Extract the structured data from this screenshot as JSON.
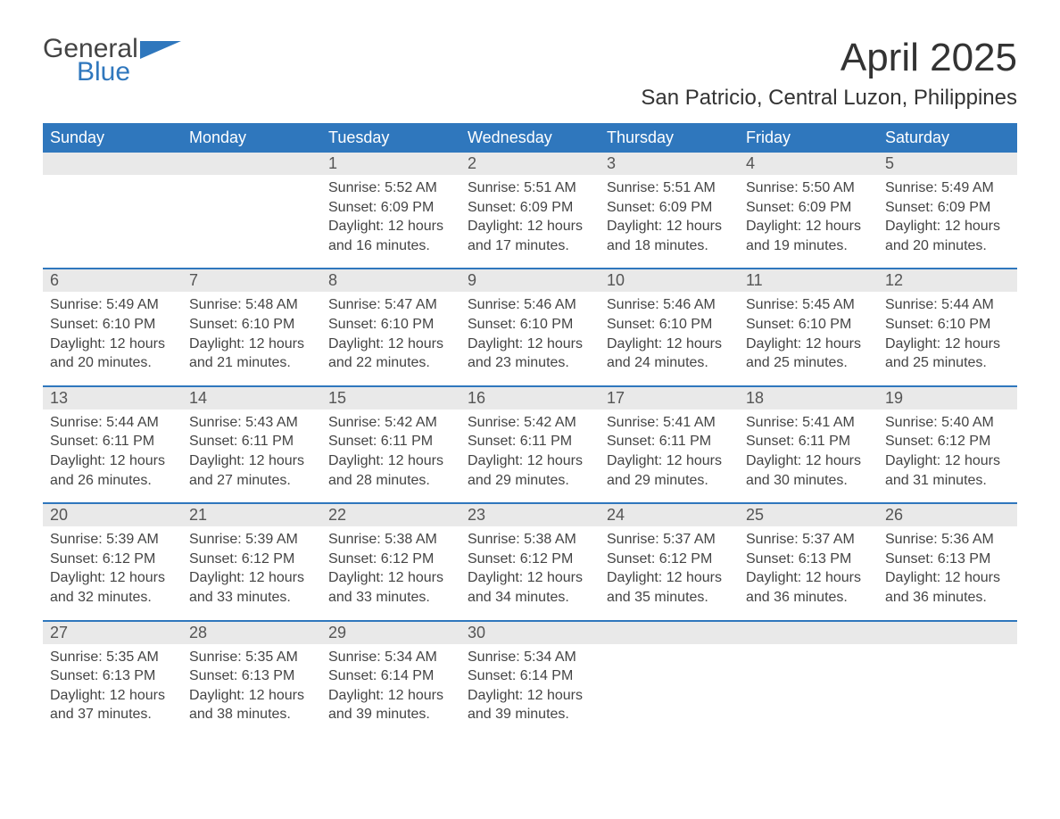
{
  "logo": {
    "line1": "General",
    "line2": "Blue",
    "brand_color": "#2f77bd",
    "text_color": "#444444"
  },
  "title": "April 2025",
  "location": "San Patricio, Central Luzon, Philippines",
  "colors": {
    "header_bg": "#2f77bd",
    "header_text": "#ffffff",
    "date_row_bg": "#e9e9e9",
    "week_border": "#2f77bd",
    "body_text": "#444444",
    "background": "#ffffff"
  },
  "typography": {
    "title_fontsize": 44,
    "location_fontsize": 24,
    "day_header_fontsize": 18,
    "date_fontsize": 18,
    "content_fontsize": 16,
    "font_family": "Arial"
  },
  "day_names": [
    "Sunday",
    "Monday",
    "Tuesday",
    "Wednesday",
    "Thursday",
    "Friday",
    "Saturday"
  ],
  "weeks": [
    {
      "days": [
        {
          "date": "",
          "sunrise": "",
          "sunset": "",
          "daylight": ""
        },
        {
          "date": "",
          "sunrise": "",
          "sunset": "",
          "daylight": ""
        },
        {
          "date": "1",
          "sunrise": "Sunrise: 5:52 AM",
          "sunset": "Sunset: 6:09 PM",
          "daylight": "Daylight: 12 hours and 16 minutes."
        },
        {
          "date": "2",
          "sunrise": "Sunrise: 5:51 AM",
          "sunset": "Sunset: 6:09 PM",
          "daylight": "Daylight: 12 hours and 17 minutes."
        },
        {
          "date": "3",
          "sunrise": "Sunrise: 5:51 AM",
          "sunset": "Sunset: 6:09 PM",
          "daylight": "Daylight: 12 hours and 18 minutes."
        },
        {
          "date": "4",
          "sunrise": "Sunrise: 5:50 AM",
          "sunset": "Sunset: 6:09 PM",
          "daylight": "Daylight: 12 hours and 19 minutes."
        },
        {
          "date": "5",
          "sunrise": "Sunrise: 5:49 AM",
          "sunset": "Sunset: 6:09 PM",
          "daylight": "Daylight: 12 hours and 20 minutes."
        }
      ]
    },
    {
      "days": [
        {
          "date": "6",
          "sunrise": "Sunrise: 5:49 AM",
          "sunset": "Sunset: 6:10 PM",
          "daylight": "Daylight: 12 hours and 20 minutes."
        },
        {
          "date": "7",
          "sunrise": "Sunrise: 5:48 AM",
          "sunset": "Sunset: 6:10 PM",
          "daylight": "Daylight: 12 hours and 21 minutes."
        },
        {
          "date": "8",
          "sunrise": "Sunrise: 5:47 AM",
          "sunset": "Sunset: 6:10 PM",
          "daylight": "Daylight: 12 hours and 22 minutes."
        },
        {
          "date": "9",
          "sunrise": "Sunrise: 5:46 AM",
          "sunset": "Sunset: 6:10 PM",
          "daylight": "Daylight: 12 hours and 23 minutes."
        },
        {
          "date": "10",
          "sunrise": "Sunrise: 5:46 AM",
          "sunset": "Sunset: 6:10 PM",
          "daylight": "Daylight: 12 hours and 24 minutes."
        },
        {
          "date": "11",
          "sunrise": "Sunrise: 5:45 AM",
          "sunset": "Sunset: 6:10 PM",
          "daylight": "Daylight: 12 hours and 25 minutes."
        },
        {
          "date": "12",
          "sunrise": "Sunrise: 5:44 AM",
          "sunset": "Sunset: 6:10 PM",
          "daylight": "Daylight: 12 hours and 25 minutes."
        }
      ]
    },
    {
      "days": [
        {
          "date": "13",
          "sunrise": "Sunrise: 5:44 AM",
          "sunset": "Sunset: 6:11 PM",
          "daylight": "Daylight: 12 hours and 26 minutes."
        },
        {
          "date": "14",
          "sunrise": "Sunrise: 5:43 AM",
          "sunset": "Sunset: 6:11 PM",
          "daylight": "Daylight: 12 hours and 27 minutes."
        },
        {
          "date": "15",
          "sunrise": "Sunrise: 5:42 AM",
          "sunset": "Sunset: 6:11 PM",
          "daylight": "Daylight: 12 hours and 28 minutes."
        },
        {
          "date": "16",
          "sunrise": "Sunrise: 5:42 AM",
          "sunset": "Sunset: 6:11 PM",
          "daylight": "Daylight: 12 hours and 29 minutes."
        },
        {
          "date": "17",
          "sunrise": "Sunrise: 5:41 AM",
          "sunset": "Sunset: 6:11 PM",
          "daylight": "Daylight: 12 hours and 29 minutes."
        },
        {
          "date": "18",
          "sunrise": "Sunrise: 5:41 AM",
          "sunset": "Sunset: 6:11 PM",
          "daylight": "Daylight: 12 hours and 30 minutes."
        },
        {
          "date": "19",
          "sunrise": "Sunrise: 5:40 AM",
          "sunset": "Sunset: 6:12 PM",
          "daylight": "Daylight: 12 hours and 31 minutes."
        }
      ]
    },
    {
      "days": [
        {
          "date": "20",
          "sunrise": "Sunrise: 5:39 AM",
          "sunset": "Sunset: 6:12 PM",
          "daylight": "Daylight: 12 hours and 32 minutes."
        },
        {
          "date": "21",
          "sunrise": "Sunrise: 5:39 AM",
          "sunset": "Sunset: 6:12 PM",
          "daylight": "Daylight: 12 hours and 33 minutes."
        },
        {
          "date": "22",
          "sunrise": "Sunrise: 5:38 AM",
          "sunset": "Sunset: 6:12 PM",
          "daylight": "Daylight: 12 hours and 33 minutes."
        },
        {
          "date": "23",
          "sunrise": "Sunrise: 5:38 AM",
          "sunset": "Sunset: 6:12 PM",
          "daylight": "Daylight: 12 hours and 34 minutes."
        },
        {
          "date": "24",
          "sunrise": "Sunrise: 5:37 AM",
          "sunset": "Sunset: 6:12 PM",
          "daylight": "Daylight: 12 hours and 35 minutes."
        },
        {
          "date": "25",
          "sunrise": "Sunrise: 5:37 AM",
          "sunset": "Sunset: 6:13 PM",
          "daylight": "Daylight: 12 hours and 36 minutes."
        },
        {
          "date": "26",
          "sunrise": "Sunrise: 5:36 AM",
          "sunset": "Sunset: 6:13 PM",
          "daylight": "Daylight: 12 hours and 36 minutes."
        }
      ]
    },
    {
      "days": [
        {
          "date": "27",
          "sunrise": "Sunrise: 5:35 AM",
          "sunset": "Sunset: 6:13 PM",
          "daylight": "Daylight: 12 hours and 37 minutes."
        },
        {
          "date": "28",
          "sunrise": "Sunrise: 5:35 AM",
          "sunset": "Sunset: 6:13 PM",
          "daylight": "Daylight: 12 hours and 38 minutes."
        },
        {
          "date": "29",
          "sunrise": "Sunrise: 5:34 AM",
          "sunset": "Sunset: 6:14 PM",
          "daylight": "Daylight: 12 hours and 39 minutes."
        },
        {
          "date": "30",
          "sunrise": "Sunrise: 5:34 AM",
          "sunset": "Sunset: 6:14 PM",
          "daylight": "Daylight: 12 hours and 39 minutes."
        },
        {
          "date": "",
          "sunrise": "",
          "sunset": "",
          "daylight": ""
        },
        {
          "date": "",
          "sunrise": "",
          "sunset": "",
          "daylight": ""
        },
        {
          "date": "",
          "sunrise": "",
          "sunset": "",
          "daylight": ""
        }
      ]
    }
  ]
}
